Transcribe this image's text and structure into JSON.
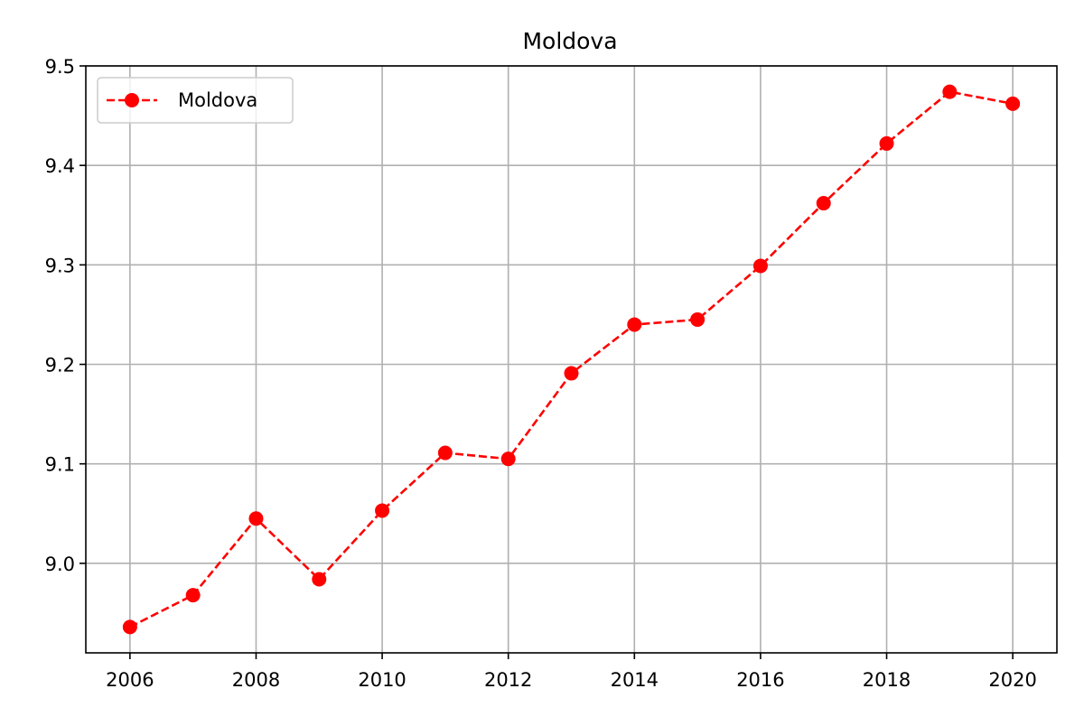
{
  "chart_data": {
    "type": "line",
    "title": "Moldova",
    "xlabel": "",
    "ylabel": "",
    "x": [
      2006,
      2007,
      2008,
      2009,
      2010,
      2011,
      2012,
      2013,
      2014,
      2015,
      2016,
      2017,
      2018,
      2019,
      2020
    ],
    "series": [
      {
        "name": "Moldova",
        "values": [
          8.936,
          8.968,
          9.045,
          8.984,
          9.053,
          9.111,
          9.105,
          9.191,
          9.24,
          9.245,
          9.299,
          9.362,
          9.422,
          9.474,
          9.462
        ],
        "color": "#ff0000",
        "line_style": "dashed",
        "marker": "circle"
      }
    ],
    "xlim": [
      2005.3,
      2020.7
    ],
    "ylim": [
      8.91,
      9.5
    ],
    "xticks": [
      2006,
      2008,
      2010,
      2012,
      2014,
      2016,
      2018,
      2020
    ],
    "yticks": [
      9.0,
      9.1,
      9.2,
      9.3,
      9.4,
      9.5
    ],
    "ytick_labels": [
      "9.0",
      "9.1",
      "9.2",
      "9.3",
      "9.4",
      "9.5"
    ],
    "xtick_labels": [
      "2006",
      "2008",
      "2010",
      "2012",
      "2014",
      "2016",
      "2018",
      "2020"
    ],
    "grid": true,
    "legend_position": "top-left"
  }
}
